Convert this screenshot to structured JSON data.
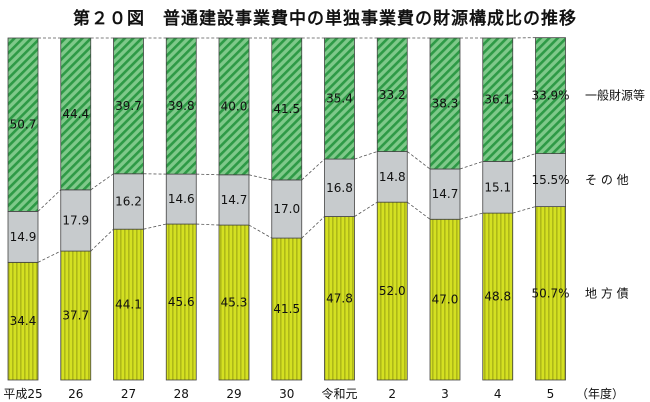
{
  "chart_data": {
    "type": "bar",
    "stacked": true,
    "percent": true,
    "title": "第２０図　普通建設事業費中の単独事業費の財源構成比の推移",
    "x_unit_label": "（年度）",
    "categories": [
      "平成25",
      "26",
      "27",
      "28",
      "29",
      "30",
      "令和元",
      "2",
      "3",
      "4",
      "5"
    ],
    "series": [
      {
        "name": "地 方 債",
        "color": "#d4e022",
        "pattern": "vertical-lines",
        "values": [
          34.4,
          37.7,
          44.1,
          45.6,
          45.3,
          41.5,
          47.8,
          52.0,
          47.0,
          48.8,
          50.7
        ]
      },
      {
        "name": "そ の 他",
        "color": "#c7cbcd",
        "pattern": "solid",
        "values": [
          14.9,
          17.9,
          16.2,
          14.6,
          14.7,
          17.0,
          16.8,
          14.8,
          14.7,
          15.1,
          15.5
        ]
      },
      {
        "name": "一般財源等",
        "color": "#5fba6f",
        "pattern": "diagonal-hatch",
        "values": [
          50.7,
          44.4,
          39.7,
          39.8,
          40.0,
          41.5,
          35.4,
          33.2,
          38.3,
          36.1,
          33.9
        ]
      }
    ],
    "value_labels": {
      "地方債": [
        "34.4",
        "37.7",
        "44.1",
        "45.6",
        "45.3",
        "41.5",
        "47.8",
        "52.0",
        "47.0",
        "48.8",
        "50.7%"
      ],
      "その他": [
        "14.9",
        "17.9",
        "16.2",
        "14.6",
        "14.7",
        "17.0",
        "16.8",
        "14.8",
        "14.7",
        "15.1",
        "15.5%"
      ],
      "一般財源等": [
        "50.7",
        "44.4",
        "39.7",
        "39.8",
        "40.0",
        "41.5",
        "35.4",
        "33.2",
        "38.3",
        "36.1",
        "33.9%"
      ]
    },
    "connector_lines": "dashed",
    "legend": "right",
    "grid": false,
    "ylim": [
      0,
      100
    ]
  }
}
